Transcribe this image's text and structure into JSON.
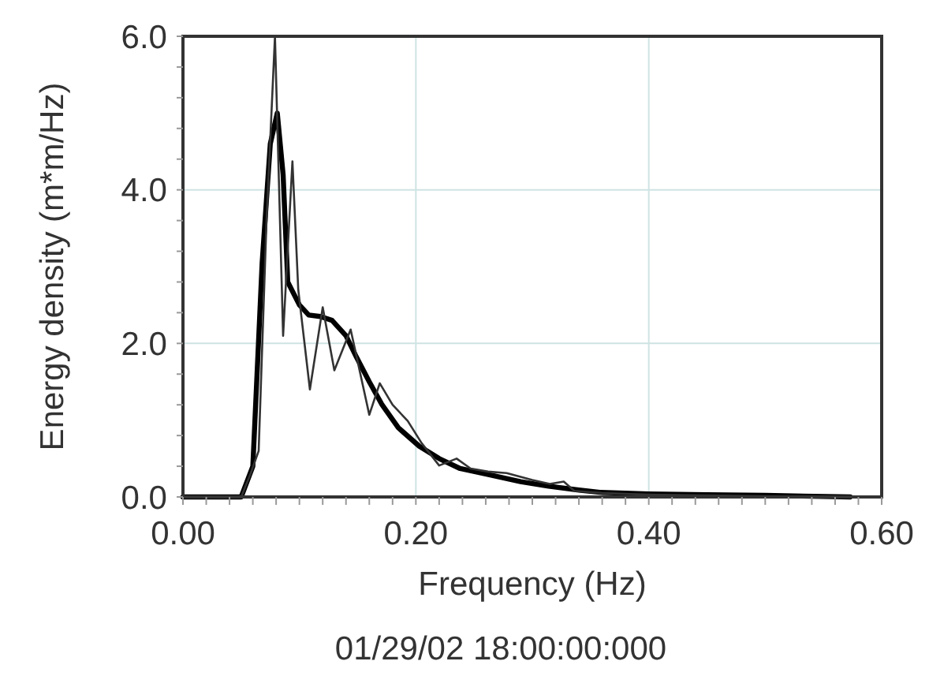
{
  "chart_data": {
    "type": "line",
    "xlabel": "Frequency (Hz)",
    "ylabel": "Energy density (m*m/Hz)",
    "annotations": [
      "01/29/02 18:00:00:000"
    ],
    "xlim": [
      0,
      0.6
    ],
    "xticks": [
      {
        "value": 0,
        "label": "0.00"
      },
      {
        "value": 0.2,
        "label": "0.20"
      },
      {
        "value": 0.4,
        "label": "0.40"
      },
      {
        "value": 0.6,
        "label": "0.60"
      }
    ],
    "ylim": [
      0,
      6
    ],
    "yticks": [
      {
        "value": 0,
        "label": "0.0"
      },
      {
        "value": 2,
        "label": "2.0"
      },
      {
        "value": 4,
        "label": "4.0"
      },
      {
        "value": 6,
        "label": "6.0"
      }
    ],
    "grid": true,
    "series": [
      {
        "color": "#000000",
        "x": [
          0,
          0.05,
          0.06,
          0.068,
          0.075,
          0.081,
          0.086,
          0.09,
          0.1,
          0.108,
          0.118,
          0.128,
          0.14,
          0.149,
          0.16,
          0.171,
          0.185,
          0.203,
          0.22,
          0.238,
          0.26,
          0.29,
          0.314,
          0.34,
          0.358,
          0.4,
          0.45,
          0.5,
          0.573
        ],
        "values": [
          0,
          0,
          0.4,
          3.05,
          4.6,
          5.0,
          4.2,
          2.8,
          2.5,
          2.37,
          2.35,
          2.3,
          2.1,
          1.82,
          1.5,
          1.2,
          0.9,
          0.66,
          0.5,
          0.37,
          0.3,
          0.2,
          0.14,
          0.09,
          0.06,
          0.04,
          0.03,
          0.02,
          0
        ]
      },
      {
        "color": "#333333",
        "x": [
          0,
          0.05,
          0.058,
          0.065,
          0.0716,
          0.079,
          0.086,
          0.094,
          0.099,
          0.109,
          0.12,
          0.13,
          0.144,
          0.16,
          0.169,
          0.18,
          0.193,
          0.205,
          0.22,
          0.235,
          0.247,
          0.262,
          0.278,
          0.3,
          0.315,
          0.327,
          0.336,
          0.36,
          0.4,
          0.45,
          0.5,
          0.573
        ],
        "values": [
          0,
          0,
          0.3,
          0.6,
          3.54,
          6.0,
          2.1,
          4.37,
          2.7,
          1.4,
          2.47,
          1.65,
          2.18,
          1.07,
          1.48,
          1.2,
          0.99,
          0.7,
          0.41,
          0.5,
          0.37,
          0.33,
          0.31,
          0.22,
          0.17,
          0.2,
          0.08,
          0.05,
          0.03,
          0.02,
          0.01,
          0
        ]
      }
    ]
  }
}
